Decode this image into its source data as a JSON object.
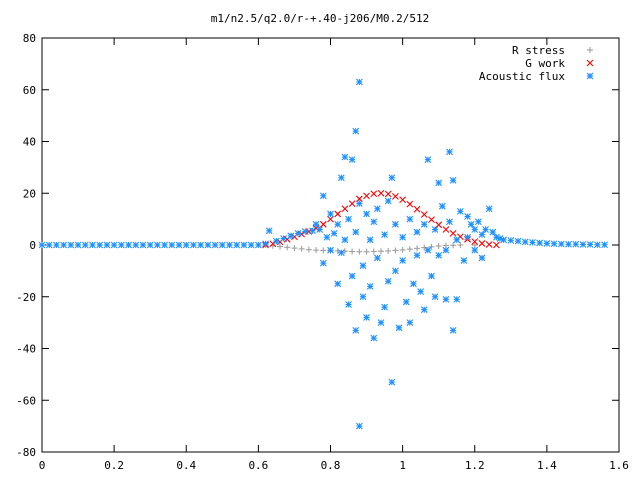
{
  "chart_data": {
    "type": "scatter",
    "title": "m1/n2.5/q2.0/r-+.40-j206/M0.2/512",
    "xlabel": "",
    "ylabel": "",
    "xlim": [
      0,
      1.6
    ],
    "ylim": [
      -80,
      80
    ],
    "x_ticks": [
      0,
      0.2,
      0.4,
      0.6,
      0.8,
      1,
      1.2,
      1.4,
      1.6
    ],
    "x_tick_labels": [
      "0",
      "0.2",
      "0.4",
      "0.6",
      "0.8",
      "1",
      "1.2",
      "1.4",
      "1.6"
    ],
    "y_ticks": [
      -80,
      -60,
      -40,
      -20,
      0,
      20,
      40,
      60,
      80
    ],
    "y_tick_labels": [
      "-80",
      "-60",
      "-40",
      "-20",
      "0",
      "20",
      "40",
      "60",
      "80"
    ],
    "grid": false,
    "legend_position": "top-right",
    "series": [
      {
        "name": "R stress",
        "marker": "plus",
        "color": "#a0a0a0",
        "points": [
          [
            0.62,
            0
          ],
          [
            0.64,
            -0.3
          ],
          [
            0.66,
            -0.6
          ],
          [
            0.68,
            -0.9
          ],
          [
            0.7,
            -1.2
          ],
          [
            0.72,
            -1.5
          ],
          [
            0.74,
            -1.8
          ],
          [
            0.76,
            -2.0
          ],
          [
            0.78,
            -2.1
          ],
          [
            0.8,
            -2.2
          ],
          [
            0.82,
            -2.3
          ],
          [
            0.84,
            -2.4
          ],
          [
            0.86,
            -2.5
          ],
          [
            0.88,
            -2.6
          ],
          [
            0.9,
            -2.6
          ],
          [
            0.92,
            -2.5
          ],
          [
            0.94,
            -2.4
          ],
          [
            0.96,
            -2.3
          ],
          [
            0.98,
            -2.1
          ],
          [
            1.0,
            -1.9
          ],
          [
            1.02,
            -1.6
          ],
          [
            1.04,
            -1.3
          ],
          [
            1.06,
            -1.0
          ],
          [
            1.08,
            -0.7
          ],
          [
            1.1,
            -0.4
          ],
          [
            1.12,
            -0.2
          ],
          [
            1.14,
            -0.1
          ],
          [
            1.16,
            0
          ],
          [
            1.2,
            0
          ]
        ]
      },
      {
        "name": "G work",
        "marker": "cross",
        "color": "#ff0000",
        "points": [
          [
            0.62,
            0
          ],
          [
            0.64,
            0.5
          ],
          [
            0.66,
            1.2
          ],
          [
            0.68,
            2.2
          ],
          [
            0.7,
            3.2
          ],
          [
            0.72,
            4.2
          ],
          [
            0.74,
            5.2
          ],
          [
            0.76,
            6.5
          ],
          [
            0.78,
            8.0
          ],
          [
            0.8,
            10.0
          ],
          [
            0.82,
            12.0
          ],
          [
            0.84,
            14.0
          ],
          [
            0.86,
            16.0
          ],
          [
            0.88,
            17.8
          ],
          [
            0.9,
            19.0
          ],
          [
            0.92,
            19.8
          ],
          [
            0.94,
            20.0
          ],
          [
            0.96,
            19.7
          ],
          [
            0.98,
            18.8
          ],
          [
            1.0,
            17.5
          ],
          [
            1.02,
            15.8
          ],
          [
            1.04,
            13.8
          ],
          [
            1.06,
            11.8
          ],
          [
            1.08,
            9.8
          ],
          [
            1.1,
            7.8
          ],
          [
            1.12,
            6.0
          ],
          [
            1.14,
            4.5
          ],
          [
            1.16,
            3.2
          ],
          [
            1.18,
            2.2
          ],
          [
            1.2,
            1.3
          ],
          [
            1.22,
            0.6
          ],
          [
            1.24,
            0.2
          ],
          [
            1.26,
            0
          ]
        ]
      },
      {
        "name": "Acoustic flux",
        "marker": "star",
        "color": "#1e90ff",
        "points": [
          [
            0.0,
            0
          ],
          [
            0.02,
            0
          ],
          [
            0.04,
            0
          ],
          [
            0.06,
            0
          ],
          [
            0.08,
            0
          ],
          [
            0.1,
            0
          ],
          [
            0.12,
            0
          ],
          [
            0.14,
            0
          ],
          [
            0.16,
            0
          ],
          [
            0.18,
            0
          ],
          [
            0.2,
            0
          ],
          [
            0.22,
            0
          ],
          [
            0.24,
            0
          ],
          [
            0.26,
            0
          ],
          [
            0.28,
            0
          ],
          [
            0.3,
            0
          ],
          [
            0.32,
            0
          ],
          [
            0.34,
            0
          ],
          [
            0.36,
            0
          ],
          [
            0.38,
            0
          ],
          [
            0.4,
            0
          ],
          [
            0.42,
            0
          ],
          [
            0.44,
            0
          ],
          [
            0.46,
            0
          ],
          [
            0.48,
            0
          ],
          [
            0.5,
            0
          ],
          [
            0.52,
            0
          ],
          [
            0.54,
            0
          ],
          [
            0.56,
            0
          ],
          [
            0.58,
            0
          ],
          [
            0.6,
            0
          ],
          [
            0.62,
            0.5
          ],
          [
            0.63,
            5.5
          ],
          [
            0.65,
            1.5
          ],
          [
            0.67,
            2.5
          ],
          [
            0.69,
            3.5
          ],
          [
            0.71,
            4.5
          ],
          [
            0.73,
            5.2
          ],
          [
            0.75,
            5.5
          ],
          [
            0.76,
            8.0
          ],
          [
            0.77,
            6.0
          ],
          [
            0.78,
            19.0
          ],
          [
            0.78,
            -7.0
          ],
          [
            0.79,
            3.0
          ],
          [
            0.8,
            12.0
          ],
          [
            0.8,
            -2.0
          ],
          [
            0.81,
            4.5
          ],
          [
            0.82,
            8.0
          ],
          [
            0.82,
            -15.0
          ],
          [
            0.83,
            26.0
          ],
          [
            0.83,
            -3.0
          ],
          [
            0.84,
            34.0
          ],
          [
            0.84,
            2.0
          ],
          [
            0.85,
            -23.0
          ],
          [
            0.85,
            10.0
          ],
          [
            0.86,
            33.0
          ],
          [
            0.86,
            -12.0
          ],
          [
            0.87,
            44.0
          ],
          [
            0.87,
            -33.0
          ],
          [
            0.87,
            5.0
          ],
          [
            0.88,
            63.0
          ],
          [
            0.88,
            -70.0
          ],
          [
            0.88,
            16.0
          ],
          [
            0.89,
            -8.0
          ],
          [
            0.89,
            -20.0
          ],
          [
            0.9,
            12.0
          ],
          [
            0.9,
            -28.0
          ],
          [
            0.91,
            2.0
          ],
          [
            0.91,
            -16.0
          ],
          [
            0.92,
            9.0
          ],
          [
            0.92,
            -36.0
          ],
          [
            0.93,
            -5.0
          ],
          [
            0.93,
            14.0
          ],
          [
            0.94,
            -30.0
          ],
          [
            0.95,
            4.0
          ],
          [
            0.95,
            -24.0
          ],
          [
            0.96,
            17.0
          ],
          [
            0.96,
            -14.0
          ],
          [
            0.97,
            26.0
          ],
          [
            0.97,
            -53.0
          ],
          [
            0.98,
            -10.0
          ],
          [
            0.98,
            8.0
          ],
          [
            0.99,
            -32.0
          ],
          [
            1.0,
            3.0
          ],
          [
            1.0,
            -6.0
          ],
          [
            1.01,
            -22.0
          ],
          [
            1.02,
            -30.0
          ],
          [
            1.02,
            10.0
          ],
          [
            1.03,
            -15.0
          ],
          [
            1.04,
            -4.0
          ],
          [
            1.04,
            5.0
          ],
          [
            1.05,
            -18.0
          ],
          [
            1.06,
            8.0
          ],
          [
            1.06,
            -25.0
          ],
          [
            1.07,
            33.0
          ],
          [
            1.07,
            -2.0
          ],
          [
            1.08,
            -12.0
          ],
          [
            1.09,
            6.0
          ],
          [
            1.09,
            -20.0
          ],
          [
            1.1,
            24.0
          ],
          [
            1.1,
            -4.0
          ],
          [
            1.11,
            15.0
          ],
          [
            1.12,
            -2.0
          ],
          [
            1.12,
            -21.0
          ],
          [
            1.13,
            36.0
          ],
          [
            1.13,
            9.0
          ],
          [
            1.14,
            -33.0
          ],
          [
            1.14,
            25.0
          ],
          [
            1.15,
            2.0
          ],
          [
            1.15,
            -21.0
          ],
          [
            1.16,
            13.0
          ],
          [
            1.17,
            -6.0
          ],
          [
            1.18,
            11.0
          ],
          [
            1.18,
            3.0
          ],
          [
            1.19,
            8.0
          ],
          [
            1.2,
            -2.0
          ],
          [
            1.2,
            6.0
          ],
          [
            1.21,
            9.0
          ],
          [
            1.22,
            -5.0
          ],
          [
            1.22,
            4.0
          ],
          [
            1.23,
            6.0
          ],
          [
            1.24,
            14.0
          ],
          [
            1.25,
            5.0
          ],
          [
            1.26,
            3.0
          ],
          [
            1.27,
            2.5
          ],
          [
            1.28,
            2.0
          ],
          [
            1.3,
            1.8
          ],
          [
            1.32,
            1.5
          ],
          [
            1.34,
            1.2
          ],
          [
            1.36,
            1.0
          ],
          [
            1.38,
            0.8
          ],
          [
            1.4,
            0.6
          ],
          [
            1.42,
            0.5
          ],
          [
            1.44,
            0.4
          ],
          [
            1.46,
            0.3
          ],
          [
            1.48,
            0.3
          ],
          [
            1.5,
            0.2
          ],
          [
            1.52,
            0.2
          ],
          [
            1.54,
            0.1
          ],
          [
            1.56,
            0.1
          ]
        ]
      }
    ]
  }
}
